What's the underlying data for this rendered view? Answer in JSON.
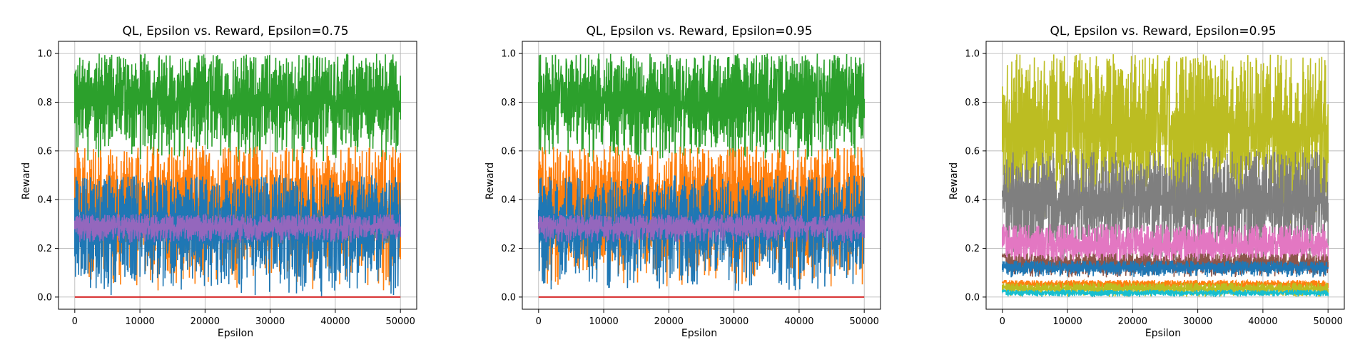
{
  "chart_data": [
    {
      "type": "line",
      "title": "QL, Epsilon vs. Reward, Epsilon=0.75",
      "xlabel": "Epsilon",
      "ylabel": "Reward",
      "xlim": [
        -2500,
        52500
      ],
      "ylim": [
        -0.05,
        1.05
      ],
      "xticks": [
        0,
        10000,
        20000,
        30000,
        40000,
        50000
      ],
      "yticks": [
        0.0,
        0.2,
        0.4,
        0.6,
        0.8,
        1.0
      ],
      "grid": true,
      "x_start": 0,
      "x_end": 50000,
      "series": [
        {
          "color": "#2ca02c",
          "low": 0.55,
          "high": 1.0,
          "peak_low": 0.5
        },
        {
          "color": "#ff7f0e",
          "low": 0.02,
          "high": 0.62,
          "peak_low": 0.25
        },
        {
          "color": "#1f77b4",
          "low": 0.0,
          "high": 0.5,
          "peak_low": 0.05
        },
        {
          "color": "#9467bd",
          "low": 0.22,
          "high": 0.34,
          "peak_low": 0.25
        },
        {
          "color": "#d62728",
          "low": 0.0,
          "high": 0.0,
          "peak_low": 0.0
        }
      ]
    },
    {
      "type": "line",
      "title": "QL, Epsilon vs. Reward, Epsilon=0.95",
      "xlabel": "Epsilon",
      "ylabel": "Reward",
      "xlim": [
        -2500,
        52500
      ],
      "ylim": [
        -0.05,
        1.05
      ],
      "xticks": [
        0,
        10000,
        20000,
        30000,
        40000,
        50000
      ],
      "yticks": [
        0.0,
        0.2,
        0.4,
        0.6,
        0.8,
        1.0
      ],
      "grid": true,
      "x_start": 0,
      "x_end": 50000,
      "series": [
        {
          "color": "#2ca02c",
          "low": 0.55,
          "high": 1.0,
          "peak_low": 0.5
        },
        {
          "color": "#ff7f0e",
          "low": 0.04,
          "high": 0.62,
          "peak_low": 0.3
        },
        {
          "color": "#1f77b4",
          "low": 0.02,
          "high": 0.5,
          "peak_low": 0.1
        },
        {
          "color": "#9467bd",
          "low": 0.22,
          "high": 0.34,
          "peak_low": 0.25
        },
        {
          "color": "#d62728",
          "low": 0.0,
          "high": 0.0,
          "peak_low": 0.0
        }
      ]
    },
    {
      "type": "line",
      "title": "QL, Epsilon vs. Reward, Epsilon=0.95",
      "xlabel": "Epsilon",
      "ylabel": "Reward",
      "xlim": [
        -2500,
        52500
      ],
      "ylim": [
        -0.05,
        1.05
      ],
      "xticks": [
        0,
        10000,
        20000,
        30000,
        40000,
        50000
      ],
      "yticks": [
        0.0,
        0.2,
        0.4,
        0.6,
        0.8,
        1.0
      ],
      "grid": true,
      "x_start": 0,
      "x_end": 50000,
      "series": [
        {
          "color": "#bcbd22",
          "low": 0.3,
          "high": 1.0,
          "peak_low": 0.3
        },
        {
          "color": "#7f7f7f",
          "low": 0.12,
          "high": 0.6,
          "peak_low": 0.2
        },
        {
          "color": "#e377c2",
          "low": 0.1,
          "high": 0.3,
          "peak_low": 0.2
        },
        {
          "color": "#8c564b",
          "low": 0.08,
          "high": 0.18,
          "peak_low": 0.15
        },
        {
          "color": "#1f77b4",
          "low": 0.08,
          "high": 0.15,
          "peak_low": 0.1
        },
        {
          "color": "#ff7f0e",
          "low": 0.03,
          "high": 0.07,
          "peak_low": 0.05
        },
        {
          "color": "#bcbd22",
          "low": 0.0,
          "high": 0.06,
          "peak_low": 0.02
        },
        {
          "color": "#17becf",
          "low": 0.0,
          "high": 0.03,
          "peak_low": 0.02
        }
      ]
    }
  ]
}
